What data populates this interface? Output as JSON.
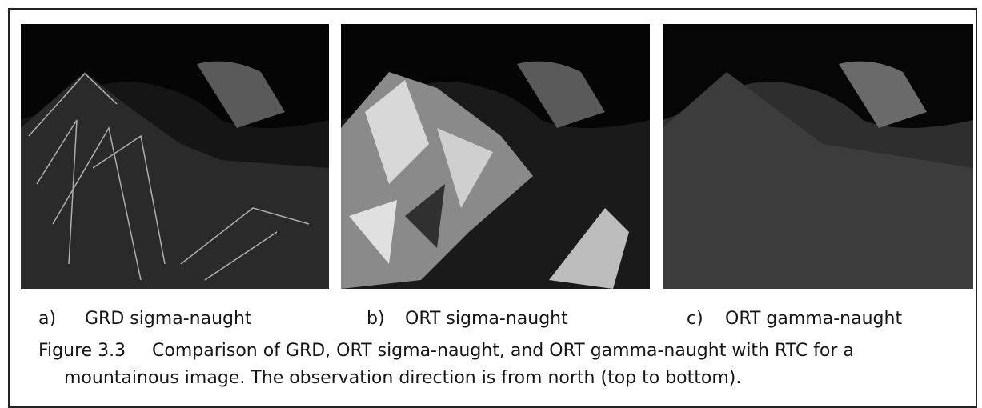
{
  "figure": {
    "panels": [
      {
        "label": "a)",
        "caption": "GRD sigma-naught"
      },
      {
        "label": "b)",
        "caption": "ORT sigma-naught"
      },
      {
        "label": "c)",
        "caption": "ORT gamma-naught"
      }
    ],
    "number": "Figure 3.3",
    "caption_lines": [
      "Comparison of GRD, ORT sigma-naught, and ORT gamma-naught with RTC for a",
      "mountainous image. The observation direction is from north (top to bottom)."
    ]
  }
}
